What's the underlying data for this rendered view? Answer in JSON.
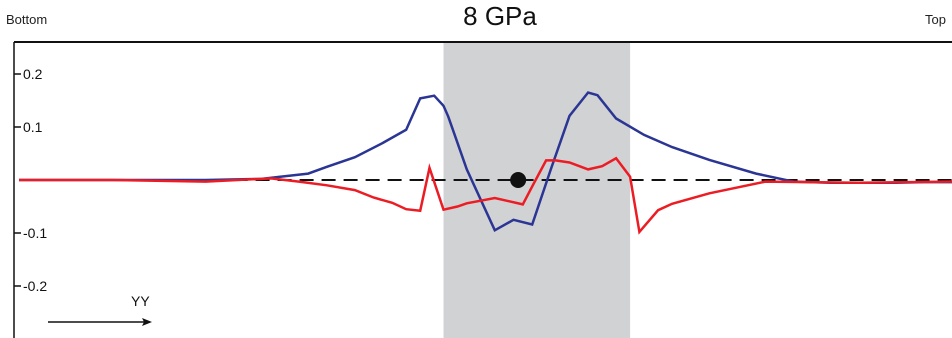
{
  "corner_left": "Bottom",
  "corner_right": "Top",
  "chart_data": {
    "type": "line",
    "title": "8 GPa",
    "xlabel": "",
    "ylabel": "",
    "ylim": [
      -0.3,
      0.25
    ],
    "xlim": [
      0,
      100
    ],
    "ytick_labels": [
      "0.2",
      "0.1",
      "-0.1",
      "-0.2"
    ],
    "ytick_values": [
      0.2,
      0.1,
      -0.1,
      -0.2
    ],
    "annotation": "YY",
    "highlight_region": [
      45.5,
      65.5
    ],
    "highlight_color": "#d1d2d4",
    "marker_point": [
      53.5,
      0
    ],
    "zero_line": "dashed",
    "series": [
      {
        "color": "#2b3594",
        "x": [
          0,
          20,
          26,
          28,
          31,
          33,
          36,
          39,
          41.5,
          43,
          44.5,
          45.5,
          46,
          48,
          51,
          53,
          55,
          57,
          59,
          61,
          62,
          64,
          67,
          70,
          74,
          79,
          83,
          87,
          90,
          94,
          97,
          100
        ],
        "y": [
          0,
          0,
          0.002,
          0.006,
          0.012,
          0.025,
          0.043,
          0.07,
          0.095,
          0.154,
          0.159,
          0.14,
          0.12,
          0.02,
          -0.095,
          -0.075,
          -0.084,
          0.02,
          0.121,
          0.165,
          0.16,
          0.116,
          0.085,
          0.062,
          0.038,
          0.012,
          -0.003,
          -0.005,
          -0.005,
          -0.005,
          -0.004,
          -0.004
        ]
      },
      {
        "color": "#ec1c24",
        "x": [
          0,
          10,
          20,
          27,
          30,
          33,
          36,
          38,
          40,
          41.5,
          43,
          44,
          45.5,
          47,
          48,
          51,
          54,
          55,
          56.5,
          57.5,
          59,
          61,
          62.5,
          64,
          65.5,
          66.5,
          68.5,
          70,
          74,
          80,
          90,
          100
        ],
        "y": [
          0,
          0,
          -0.003,
          0.003,
          -0.003,
          -0.01,
          -0.019,
          -0.033,
          -0.043,
          -0.055,
          -0.058,
          0.023,
          -0.056,
          -0.05,
          -0.044,
          -0.034,
          -0.046,
          -0.012,
          0.037,
          0.037,
          0.033,
          0.02,
          0.026,
          0.041,
          0.006,
          -0.098,
          -0.057,
          -0.045,
          -0.025,
          -0.003,
          -0.005,
          -0.003
        ]
      }
    ]
  }
}
